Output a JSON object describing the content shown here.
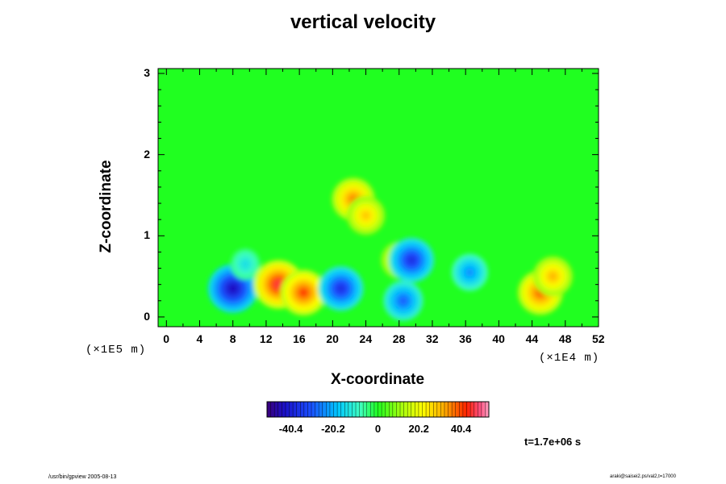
{
  "chart_data": {
    "type": "heatmap",
    "title": "vertical velocity",
    "xlabel": "X-coordinate",
    "ylabel": "Z-coordinate",
    "x_scale_label": "(×1E4 m)",
    "y_scale_label": "(×1E5 m)",
    "x_ticks": [
      "0",
      "4",
      "8",
      "12",
      "16",
      "20",
      "24",
      "28",
      "32",
      "36",
      "40",
      "44",
      "48",
      "52"
    ],
    "y_ticks": [
      "0",
      "1",
      "2",
      "3"
    ],
    "xlim": [
      -1,
      52
    ],
    "ylim": [
      -0.12,
      3.06
    ],
    "colorbar": {
      "ticks": [
        "-40.4",
        "-20.2",
        "0",
        "20.2",
        "40.4"
      ],
      "range": [
        -53,
        53
      ]
    },
    "features": [
      {
        "x": 8.0,
        "z": 0.35,
        "value": -45,
        "kind": "downdraft"
      },
      {
        "x": 9.5,
        "z": 0.65,
        "value": -15,
        "kind": "downdraft"
      },
      {
        "x": 13.5,
        "z": 0.4,
        "value": 45,
        "kind": "updraft"
      },
      {
        "x": 16.5,
        "z": 0.3,
        "value": 40,
        "kind": "updraft"
      },
      {
        "x": 21.0,
        "z": 0.35,
        "value": -38,
        "kind": "downdraft"
      },
      {
        "x": 22.5,
        "z": 1.45,
        "value": 35,
        "kind": "updraft"
      },
      {
        "x": 24.0,
        "z": 1.25,
        "value": 28,
        "kind": "updraft"
      },
      {
        "x": 28.0,
        "z": 0.7,
        "value": 25,
        "kind": "updraft"
      },
      {
        "x": 29.5,
        "z": 0.7,
        "value": -38,
        "kind": "downdraft"
      },
      {
        "x": 28.5,
        "z": 0.2,
        "value": -30,
        "kind": "downdraft"
      },
      {
        "x": 36.5,
        "z": 0.55,
        "value": -25,
        "kind": "downdraft"
      },
      {
        "x": 45.0,
        "z": 0.3,
        "value": 38,
        "kind": "updraft"
      },
      {
        "x": 46.5,
        "z": 0.5,
        "value": 30,
        "kind": "updraft"
      }
    ],
    "time_label": "t=1.7e+06 s"
  },
  "footer": {
    "left": "/usr/bin/gpview 2005-08-13",
    "right": "araki@saisei2.ps/val2,t=17000"
  }
}
